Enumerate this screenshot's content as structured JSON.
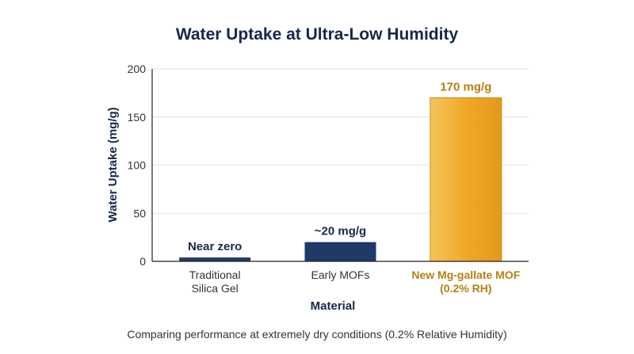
{
  "chart_data": {
    "type": "bar",
    "title": "Water Uptake at Ultra-Low Humidity",
    "xlabel": "Material",
    "ylabel": "Water Uptake (mg/g)",
    "ylim": [
      0,
      200
    ],
    "yticks": [
      0,
      50,
      100,
      150,
      200
    ],
    "grid": true,
    "categories": [
      [
        "Traditional",
        "Silica Gel"
      ],
      [
        "Early MOFs"
      ],
      [
        "New Mg-gallate MOF",
        "(0.2% RH)"
      ]
    ],
    "values": [
      4,
      20,
      170
    ],
    "data_labels": [
      "Near zero",
      "~20 mg/g",
      "170 mg/g"
    ],
    "highlight_index": 2,
    "colors": {
      "bar": "#1e3a66",
      "bar_highlight": "#f0a827",
      "highlight_text": "#b5800f",
      "text_dark": "#16284a",
      "grid": "#e3e3e3"
    },
    "caption": "Comparing performance at extremely dry conditions (0.2% Relative Humidity)"
  }
}
